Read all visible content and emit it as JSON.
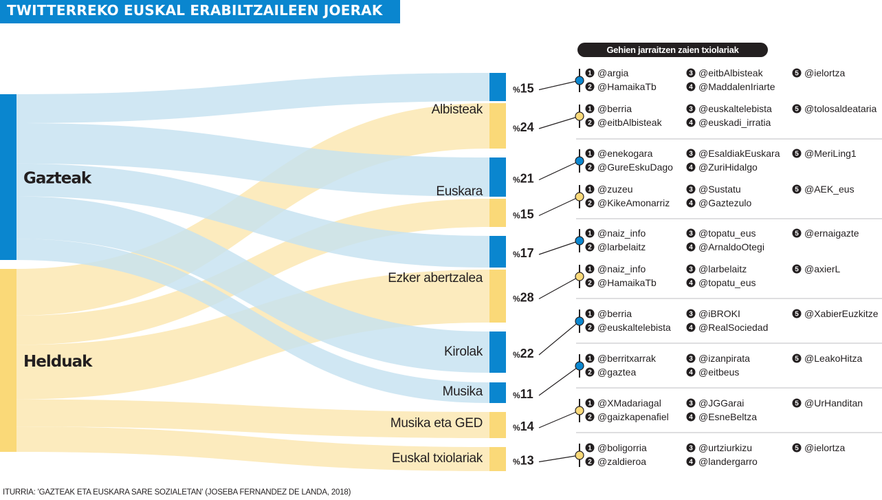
{
  "title": "TWITTERREKO EUSKAL ERABILTZAILEEN JOERAK",
  "panel_header": "Gehien jarraitzen zaien txiolariak",
  "source": "ITURRIA: 'GAZTEAK ETA EUSKARA SARE SOZIALETAN' (JOSEBA FERNANDEZ DE LANDA, 2018)",
  "colors": {
    "gazteak": "#0a86cf",
    "helduak": "#fad978",
    "flow_blue": "#c6e2f0",
    "flow_yellow": "#fbe7b0",
    "title_bg": "#0a86cf"
  },
  "groups": [
    {
      "id": "gazteak",
      "label": "Gazteak"
    },
    {
      "id": "helduak",
      "label": "Helduak"
    }
  ],
  "percent_sign": "%",
  "topics": [
    {
      "label": "Albisteak",
      "rows": [
        {
          "group": "gazteak",
          "pct": 15,
          "accounts": [
            "@argia",
            "@HamaikaTb",
            "@eitbAlbisteak",
            "@MaddalenIriarte",
            "@ielortza"
          ]
        },
        {
          "group": "helduak",
          "pct": 24,
          "accounts": [
            "@berria",
            "@eitbAlbisteak",
            "@euskaltelebista",
            "@euskadi_irratia",
            "@tolosaldeataria"
          ]
        }
      ]
    },
    {
      "label": "Euskara",
      "rows": [
        {
          "group": "gazteak",
          "pct": 21,
          "accounts": [
            "@enekogara",
            "@GureEskuDago",
            "@EsaldiakEuskara",
            "@ZuriHidalgo",
            "@MeriLing1"
          ]
        },
        {
          "group": "helduak",
          "pct": 15,
          "accounts": [
            "@zuzeu",
            "@KikeAmonarriz",
            "@Sustatu",
            "@Gaztezulo",
            "@AEK_eus"
          ]
        }
      ]
    },
    {
      "label": "Ezker abertzalea",
      "rows": [
        {
          "group": "gazteak",
          "pct": 17,
          "accounts": [
            "@naiz_info",
            "@larbelaitz",
            "@topatu_eus",
            "@ArnaldoOtegi",
            "@ernaigazte"
          ]
        },
        {
          "group": "helduak",
          "pct": 28,
          "accounts": [
            "@naiz_info",
            "@HamaikaTb",
            "@larbelaitz",
            "@topatu_eus",
            "@axierL"
          ]
        }
      ]
    },
    {
      "label": "Kirolak",
      "rows": [
        {
          "group": "gazteak",
          "pct": 22,
          "accounts": [
            "@berria",
            "@euskaltelebista",
            "@iBROKI",
            "@RealSociedad",
            "@XabierEuzkitze"
          ]
        }
      ]
    },
    {
      "label": "Musika",
      "rows": [
        {
          "group": "gazteak",
          "pct": 11,
          "accounts": [
            "@berritxarrak",
            "@gaztea",
            "@izanpirata",
            "@eitbeus",
            "@LeakoHitza"
          ]
        }
      ]
    },
    {
      "label": "Musika eta GED",
      "rows": [
        {
          "group": "helduak",
          "pct": 14,
          "accounts": [
            "@XMadariagal",
            "@gaizkapenafiel",
            "@JGGarai",
            "@EsneBeltza",
            "@UrHanditan"
          ]
        }
      ]
    },
    {
      "label": "Euskal txiolariak",
      "rows": [
        {
          "group": "helduak",
          "pct": 13,
          "accounts": [
            "@boligorria",
            "@zaldieroa",
            "@urtziurkizu",
            "@landergarro",
            "@ielortza"
          ]
        }
      ]
    }
  ]
}
